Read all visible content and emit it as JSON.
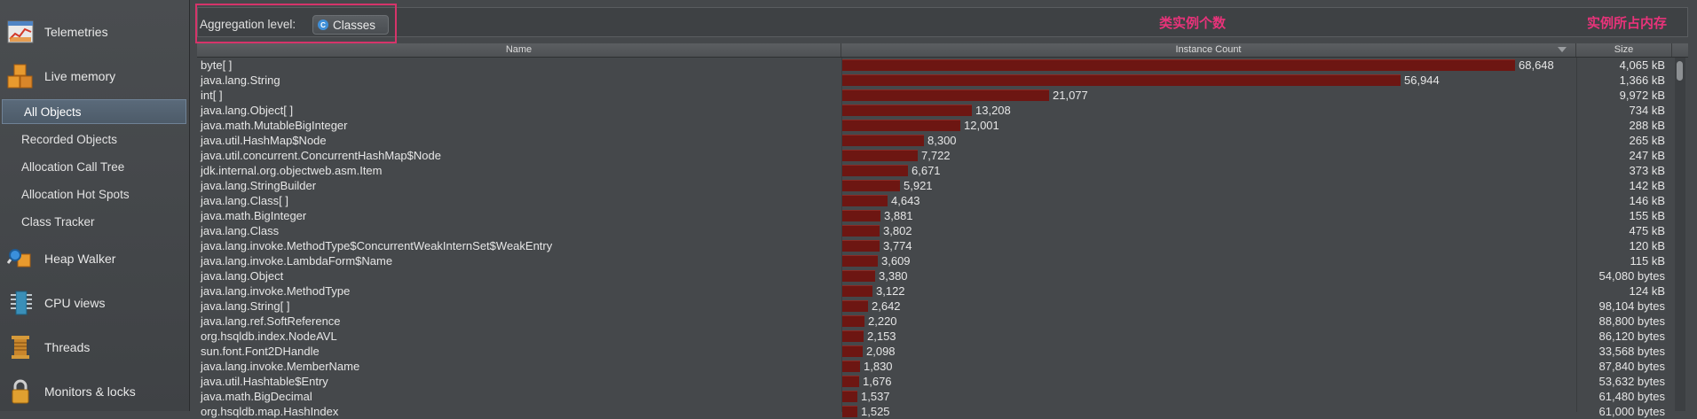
{
  "sidebar": {
    "sections": [
      {
        "label": "Telemetries",
        "icon": "telemetries-chart-icon"
      },
      {
        "label": "Live memory",
        "icon": "live-memory-blocks-icon"
      },
      {
        "label": "Heap Walker",
        "icon": "heap-walker-icon"
      },
      {
        "label": "CPU views",
        "icon": "cpu-chip-icon"
      },
      {
        "label": "Threads",
        "icon": "threads-spool-icon"
      },
      {
        "label": "Monitors & locks",
        "icon": "lock-icon"
      }
    ],
    "items": [
      {
        "label": "All Objects",
        "active": true
      },
      {
        "label": "Recorded Objects"
      },
      {
        "label": "Allocation Call Tree"
      },
      {
        "label": "Allocation Hot Spots"
      },
      {
        "label": "Class Tracker"
      }
    ]
  },
  "toolbar": {
    "aggregation_label": "Aggregation level:",
    "aggregation_value": "Classes",
    "aggregation_icon": "class-c-icon"
  },
  "annotations": {
    "count_note": "类实例个数",
    "size_note": "实例所占内存",
    "highlight_color": "#d6346a"
  },
  "table": {
    "columns": {
      "name": "Name",
      "count": "Instance Count",
      "size": "Size"
    },
    "sort_column": "Instance Count",
    "sort_direction": "descending",
    "bar_color": "#6d1612",
    "max_count": 68648,
    "rows": [
      {
        "name": "byte[ ]",
        "count": 68648,
        "count_text": "68,648",
        "size": "4,065 kB"
      },
      {
        "name": "java.lang.String",
        "count": 56944,
        "count_text": "56,944",
        "size": "1,366 kB"
      },
      {
        "name": "int[ ]",
        "count": 21077,
        "count_text": "21,077",
        "size": "9,972 kB"
      },
      {
        "name": "java.lang.Object[ ]",
        "count": 13208,
        "count_text": "13,208",
        "size": "734 kB"
      },
      {
        "name": "java.math.MutableBigInteger",
        "count": 12001,
        "count_text": "12,001",
        "size": "288 kB"
      },
      {
        "name": "java.util.HashMap$Node",
        "count": 8300,
        "count_text": "8,300",
        "size": "265 kB"
      },
      {
        "name": "java.util.concurrent.ConcurrentHashMap$Node",
        "count": 7722,
        "count_text": "7,722",
        "size": "247 kB"
      },
      {
        "name": "jdk.internal.org.objectweb.asm.Item",
        "count": 6671,
        "count_text": "6,671",
        "size": "373 kB"
      },
      {
        "name": "java.lang.StringBuilder",
        "count": 5921,
        "count_text": "5,921",
        "size": "142 kB"
      },
      {
        "name": "java.lang.Class[ ]",
        "count": 4643,
        "count_text": "4,643",
        "size": "146 kB"
      },
      {
        "name": "java.math.BigInteger",
        "count": 3881,
        "count_text": "3,881",
        "size": "155 kB"
      },
      {
        "name": "java.lang.Class",
        "count": 3802,
        "count_text": "3,802",
        "size": "475 kB"
      },
      {
        "name": "java.lang.invoke.MethodType$ConcurrentWeakInternSet$WeakEntry",
        "count": 3774,
        "count_text": "3,774",
        "size": "120 kB"
      },
      {
        "name": "java.lang.invoke.LambdaForm$Name",
        "count": 3609,
        "count_text": "3,609",
        "size": "115 kB"
      },
      {
        "name": "java.lang.Object",
        "count": 3380,
        "count_text": "3,380",
        "size": "54,080 bytes"
      },
      {
        "name": "java.lang.invoke.MethodType",
        "count": 3122,
        "count_text": "3,122",
        "size": "124 kB"
      },
      {
        "name": "java.lang.String[ ]",
        "count": 2642,
        "count_text": "2,642",
        "size": "98,104 bytes"
      },
      {
        "name": "java.lang.ref.SoftReference",
        "count": 2220,
        "count_text": "2,220",
        "size": "88,800 bytes"
      },
      {
        "name": "org.hsqldb.index.NodeAVL",
        "count": 2153,
        "count_text": "2,153",
        "size": "86,120 bytes"
      },
      {
        "name": "sun.font.Font2DHandle",
        "count": 2098,
        "count_text": "2,098",
        "size": "33,568 bytes"
      },
      {
        "name": "java.lang.invoke.MemberName",
        "count": 1830,
        "count_text": "1,830",
        "size": "87,840 bytes"
      },
      {
        "name": "java.util.Hashtable$Entry",
        "count": 1676,
        "count_text": "1,676",
        "size": "53,632 bytes"
      },
      {
        "name": "java.math.BigDecimal",
        "count": 1537,
        "count_text": "1,537",
        "size": "61,480 bytes"
      },
      {
        "name": "org.hsqldb.map.HashIndex",
        "count": 1525,
        "count_text": "1,525",
        "size": "61,000 bytes"
      }
    ]
  }
}
